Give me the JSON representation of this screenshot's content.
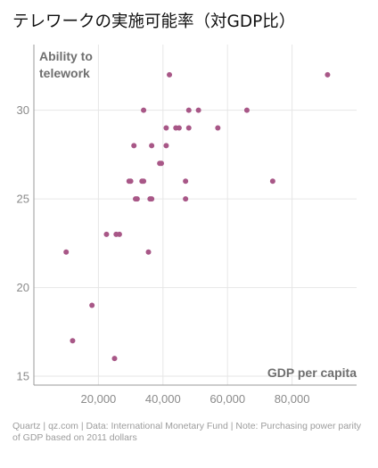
{
  "title": "テレワークの実施可能率（対GDP比）",
  "source": "Quartz | qz.com | Data: International Monetary Fund | Note: Purchasing power parity of GDP based on 2011 dollars",
  "colors": {
    "point": "#a85787",
    "grid": "#e6e6e6",
    "axis": "#9a9a9a"
  },
  "chart_data": {
    "type": "scatter",
    "title": "テレワークの実施可能率（対GDP比）",
    "xlabel": "GDP per capita",
    "ylabel": "Ability to telework",
    "ylabel_lines": [
      "Ability to",
      "telework"
    ],
    "xlim": [
      0,
      100000
    ],
    "ylim": [
      14.5,
      33.7
    ],
    "x_ticks": [
      20000,
      40000,
      60000,
      80000
    ],
    "x_tick_labels": [
      "20,000",
      "40,000",
      "60,000",
      "80,000"
    ],
    "y_ticks": [
      15,
      20,
      25,
      30
    ],
    "y_tick_labels": [
      "15",
      "20",
      "25",
      "30"
    ],
    "grid": true,
    "points": [
      {
        "x": 91000,
        "y": 32
      },
      {
        "x": 42000,
        "y": 32
      },
      {
        "x": 34000,
        "y": 30
      },
      {
        "x": 48000,
        "y": 30
      },
      {
        "x": 51000,
        "y": 30
      },
      {
        "x": 66000,
        "y": 30
      },
      {
        "x": 41000,
        "y": 29
      },
      {
        "x": 44000,
        "y": 29
      },
      {
        "x": 45000,
        "y": 29
      },
      {
        "x": 48000,
        "y": 29
      },
      {
        "x": 57000,
        "y": 29
      },
      {
        "x": 31000,
        "y": 28
      },
      {
        "x": 36500,
        "y": 28
      },
      {
        "x": 41000,
        "y": 28
      },
      {
        "x": 39000,
        "y": 27
      },
      {
        "x": 39500,
        "y": 27
      },
      {
        "x": 29500,
        "y": 26
      },
      {
        "x": 30000,
        "y": 26
      },
      {
        "x": 33500,
        "y": 26
      },
      {
        "x": 34000,
        "y": 26
      },
      {
        "x": 47000,
        "y": 26
      },
      {
        "x": 74000,
        "y": 26
      },
      {
        "x": 31500,
        "y": 25
      },
      {
        "x": 32000,
        "y": 25
      },
      {
        "x": 36000,
        "y": 25
      },
      {
        "x": 36500,
        "y": 25
      },
      {
        "x": 47000,
        "y": 25
      },
      {
        "x": 22500,
        "y": 23
      },
      {
        "x": 25500,
        "y": 23
      },
      {
        "x": 26500,
        "y": 23
      },
      {
        "x": 10000,
        "y": 22
      },
      {
        "x": 35500,
        "y": 22
      },
      {
        "x": 18000,
        "y": 19
      },
      {
        "x": 12000,
        "y": 17
      },
      {
        "x": 25000,
        "y": 16
      }
    ]
  }
}
